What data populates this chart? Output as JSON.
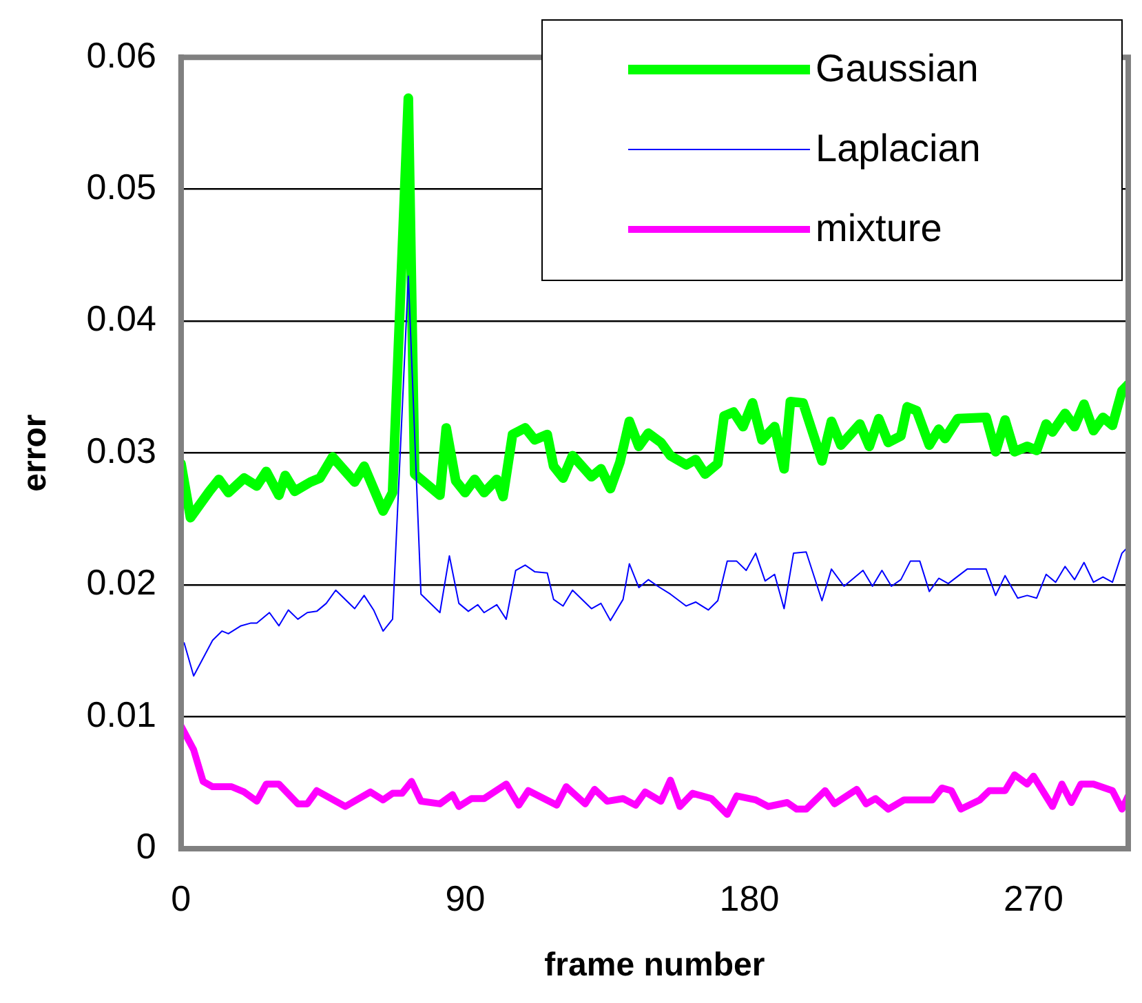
{
  "chart_data": {
    "type": "line",
    "xlabel": "frame number",
    "ylabel": "error",
    "xlim": [
      0,
      300
    ],
    "xticks": [
      0,
      90,
      180,
      270
    ],
    "ylim": [
      0,
      0.06
    ],
    "yticks": [
      0,
      0.01,
      0.02,
      0.03,
      0.04,
      0.05,
      0.06
    ],
    "grid": "y",
    "legend": "top right",
    "marker": "none",
    "series": [
      {
        "name": "Gaussian",
        "color": "#00ff00",
        "x": [
          0,
          3,
          9,
          12,
          15,
          20,
          24,
          27,
          31,
          33,
          36,
          41,
          44,
          48,
          55,
          58,
          64,
          67,
          72,
          74,
          82,
          84,
          87,
          90,
          93,
          96,
          100,
          102,
          105,
          109,
          112,
          116,
          118,
          121,
          124,
          130,
          133,
          136,
          139,
          142,
          145,
          148,
          152,
          155,
          160,
          163,
          166,
          170,
          172,
          175,
          178,
          181,
          184,
          188,
          191,
          193,
          197,
          203,
          206,
          209,
          215,
          218,
          221,
          224,
          228,
          230,
          233,
          237,
          240,
          242,
          246,
          255,
          258,
          261,
          264,
          268,
          271,
          274,
          276,
          280,
          283,
          286,
          289,
          292,
          295,
          298,
          300
        ],
        "values": [
          0.0292,
          0.0251,
          0.0271,
          0.028,
          0.027,
          0.0281,
          0.0275,
          0.0286,
          0.0268,
          0.0283,
          0.0271,
          0.0278,
          0.0281,
          0.0297,
          0.0278,
          0.029,
          0.0256,
          0.027,
          0.0569,
          0.0284,
          0.0268,
          0.0319,
          0.0279,
          0.027,
          0.028,
          0.027,
          0.028,
          0.0267,
          0.0314,
          0.0319,
          0.031,
          0.0314,
          0.029,
          0.0281,
          0.0298,
          0.0282,
          0.0288,
          0.0273,
          0.0293,
          0.0324,
          0.0305,
          0.0315,
          0.0308,
          0.0298,
          0.0291,
          0.0295,
          0.0284,
          0.0292,
          0.0328,
          0.0331,
          0.032,
          0.0338,
          0.031,
          0.032,
          0.0288,
          0.0339,
          0.0338,
          0.0294,
          0.0324,
          0.0306,
          0.0322,
          0.0305,
          0.0326,
          0.0308,
          0.0313,
          0.0335,
          0.0332,
          0.0306,
          0.0318,
          0.0311,
          0.0326,
          0.0327,
          0.0301,
          0.0325,
          0.0301,
          0.0305,
          0.0302,
          0.0322,
          0.0316,
          0.033,
          0.032,
          0.0337,
          0.0317,
          0.0327,
          0.0321,
          0.0347,
          0.0352
        ]
      },
      {
        "name": "Laplacian",
        "color": "#0000ff",
        "x": [
          1,
          4,
          10,
          13,
          15,
          19,
          22,
          24,
          28,
          31,
          34,
          37,
          40,
          43,
          46,
          49,
          55,
          58,
          61,
          64,
          67,
          72,
          76,
          82,
          85,
          88,
          91,
          94,
          96,
          100,
          103,
          106,
          109,
          112,
          116,
          118,
          121,
          124,
          130,
          133,
          136,
          140,
          142,
          145,
          148,
          151,
          155,
          160,
          163,
          167,
          170,
          173,
          176,
          179,
          182,
          185,
          188,
          191,
          194,
          198,
          203,
          206,
          210,
          216,
          219,
          222,
          225,
          228,
          231,
          234,
          237,
          240,
          243,
          249,
          255,
          258,
          261,
          265,
          268,
          271,
          274,
          277,
          280,
          283,
          286,
          289,
          292,
          295,
          298,
          300
        ],
        "values": [
          0.0156,
          0.0131,
          0.0158,
          0.0165,
          0.0163,
          0.0169,
          0.0171,
          0.0171,
          0.0179,
          0.0169,
          0.0181,
          0.0174,
          0.0179,
          0.018,
          0.0186,
          0.0196,
          0.0182,
          0.0192,
          0.0181,
          0.0165,
          0.0174,
          0.0434,
          0.0193,
          0.0179,
          0.0222,
          0.0186,
          0.018,
          0.0185,
          0.0179,
          0.0185,
          0.0174,
          0.0211,
          0.0215,
          0.021,
          0.0209,
          0.0189,
          0.0184,
          0.0196,
          0.0182,
          0.0186,
          0.0173,
          0.0189,
          0.0216,
          0.0198,
          0.0204,
          0.0199,
          0.0193,
          0.0184,
          0.0187,
          0.0181,
          0.0188,
          0.0218,
          0.0218,
          0.0211,
          0.0224,
          0.0203,
          0.0208,
          0.0182,
          0.0224,
          0.0225,
          0.0188,
          0.0212,
          0.0199,
          0.0211,
          0.0199,
          0.0211,
          0.0199,
          0.0204,
          0.0218,
          0.0218,
          0.0195,
          0.0205,
          0.0201,
          0.0212,
          0.0212,
          0.0192,
          0.0207,
          0.019,
          0.0192,
          0.019,
          0.0208,
          0.0202,
          0.0214,
          0.0204,
          0.0217,
          0.0202,
          0.0206,
          0.0202,
          0.0224,
          0.0229
        ]
      },
      {
        "name": "mixture",
        "color": "#ff00ff",
        "x": [
          0,
          4,
          7,
          10,
          16,
          20,
          24,
          27,
          31,
          37,
          40,
          43,
          52,
          60,
          64,
          67,
          70,
          73,
          76,
          82,
          86,
          88,
          92,
          96,
          103,
          107,
          110,
          119,
          122,
          128,
          131,
          135,
          140,
          144,
          147,
          152,
          155,
          158,
          162,
          168,
          173,
          176,
          182,
          186,
          192,
          195,
          198,
          201,
          204,
          207,
          214,
          217,
          220,
          224,
          229,
          238,
          241,
          244,
          247,
          253,
          256,
          261,
          264,
          268,
          270,
          276,
          279,
          282,
          285,
          289,
          295,
          298,
          300
        ],
        "values": [
          0.0093,
          0.0075,
          0.0051,
          0.0047,
          0.0047,
          0.0043,
          0.0036,
          0.0049,
          0.0049,
          0.0034,
          0.0034,
          0.0044,
          0.0032,
          0.0043,
          0.0037,
          0.0042,
          0.0042,
          0.0051,
          0.0036,
          0.0034,
          0.0041,
          0.0032,
          0.0038,
          0.0038,
          0.0049,
          0.0033,
          0.0044,
          0.0033,
          0.0047,
          0.0034,
          0.0045,
          0.0036,
          0.0038,
          0.0033,
          0.0043,
          0.0036,
          0.0052,
          0.0032,
          0.0042,
          0.0038,
          0.0026,
          0.004,
          0.0037,
          0.0032,
          0.0035,
          0.003,
          0.003,
          0.0037,
          0.0044,
          0.0034,
          0.0045,
          0.0034,
          0.0038,
          0.003,
          0.0037,
          0.0037,
          0.0046,
          0.0044,
          0.003,
          0.0037,
          0.0044,
          0.0044,
          0.0056,
          0.0049,
          0.0055,
          0.0032,
          0.0049,
          0.0035,
          0.0049,
          0.0049,
          0.0044,
          0.003,
          0.004
        ]
      }
    ]
  }
}
